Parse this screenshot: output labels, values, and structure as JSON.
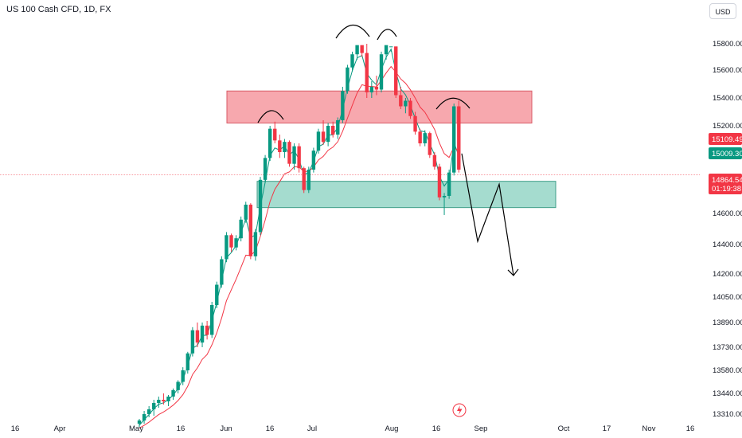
{
  "header": {
    "title": "US 100 Cash CFD, 1D, FX",
    "currency": "USD"
  },
  "colors": {
    "up": "#089981",
    "down": "#f23645",
    "ema_fast": "#089981",
    "ema_slow": "#f23645",
    "resistance_zone": "#f7a8ae",
    "support_zone": "#a5dccf"
  },
  "icons": {
    "bottom": "lightning-icon"
  },
  "chart_data": {
    "type": "candlestick",
    "y_ticks": [
      15800,
      15600,
      15400,
      15200,
      14600,
      14400,
      14200,
      14050,
      13890,
      13730,
      13580,
      13440,
      13310
    ],
    "y_tick_labels": [
      "15800.00",
      "15600.00",
      "15400.00",
      "15200.00",
      "14600.00",
      "14400.00",
      "14200.00",
      "14050.00",
      "13890.00",
      "13730.00",
      "13580.00",
      "13440.00",
      "13310.00"
    ],
    "x_tick_labels": [
      "16",
      "Apr",
      "May",
      "16",
      "Jun",
      "16",
      "Jul",
      "Aug",
      "16",
      "Sep",
      "Oct",
      "17",
      "Nov",
      "16"
    ],
    "price_tags": [
      {
        "text": "15109.49",
        "color": "#f23645",
        "value": 15109.49
      },
      {
        "text": "15009.30",
        "color": "#089981",
        "value": 15009.3
      },
      {
        "text": "14864.54",
        "text2": "01:19:38",
        "color": "#f23645",
        "value": 14864.54
      }
    ],
    "current_price": 14864.54,
    "zones": [
      {
        "name": "resistance",
        "top": 15450,
        "bottom": 15220
      },
      {
        "name": "support",
        "top": 14820,
        "bottom": 14640
      }
    ],
    "candles": [
      [
        13250,
        13280,
        13230,
        13270
      ],
      [
        13270,
        13330,
        13250,
        13310
      ],
      [
        13310,
        13360,
        13290,
        13340
      ],
      [
        13340,
        13400,
        13300,
        13380
      ],
      [
        13380,
        13420,
        13350,
        13400
      ],
      [
        13400,
        13440,
        13370,
        13390
      ],
      [
        13390,
        13430,
        13360,
        13420
      ],
      [
        13420,
        13470,
        13400,
        13460
      ],
      [
        13460,
        13520,
        13440,
        13510
      ],
      [
        13510,
        13600,
        13490,
        13580
      ],
      [
        13580,
        13700,
        13560,
        13690
      ],
      [
        13690,
        13860,
        13670,
        13840
      ],
      [
        13840,
        13890,
        13730,
        13760
      ],
      [
        13760,
        13890,
        13730,
        13870
      ],
      [
        13870,
        13900,
        13780,
        13810
      ],
      [
        13810,
        14020,
        13790,
        14000
      ],
      [
        14000,
        14150,
        13980,
        14130
      ],
      [
        14130,
        14320,
        14110,
        14300
      ],
      [
        14300,
        14480,
        14280,
        14460
      ],
      [
        14460,
        14470,
        14350,
        14380
      ],
      [
        14380,
        14460,
        14360,
        14440
      ],
      [
        14440,
        14580,
        14420,
        14560
      ],
      [
        14560,
        14680,
        14540,
        14660
      ],
      [
        14660,
        14670,
        14300,
        14320
      ],
      [
        14320,
        14500,
        14290,
        14480
      ],
      [
        14480,
        14850,
        14460,
        14830
      ],
      [
        14830,
        15000,
        14810,
        14980
      ],
      [
        14980,
        15200,
        14960,
        15180
      ],
      [
        15180,
        15230,
        15080,
        15100
      ],
      [
        15100,
        15140,
        14980,
        15020
      ],
      [
        15020,
        15110,
        14980,
        15090
      ],
      [
        15090,
        15100,
        14920,
        14940
      ],
      [
        14940,
        15080,
        14900,
        15060
      ],
      [
        15060,
        15080,
        14880,
        14910
      ],
      [
        14910,
        14920,
        14740,
        14760
      ],
      [
        14760,
        14920,
        14740,
        14900
      ],
      [
        14900,
        15050,
        14880,
        15030
      ],
      [
        15030,
        15180,
        15010,
        15160
      ],
      [
        15160,
        15240,
        15070,
        15090
      ],
      [
        15090,
        15220,
        15060,
        15200
      ],
      [
        15200,
        15230,
        15120,
        15140
      ],
      [
        15140,
        15260,
        15110,
        15240
      ],
      [
        15240,
        15480,
        15220,
        15450
      ],
      [
        15450,
        15640,
        15430,
        15620
      ],
      [
        15620,
        15740,
        15590,
        15720
      ],
      [
        15720,
        15820,
        15680,
        15790
      ],
      [
        15790,
        15860,
        15700,
        15730
      ],
      [
        15730,
        15800,
        15400,
        15440
      ],
      [
        15440,
        15520,
        15400,
        15480
      ],
      [
        15480,
        15560,
        15420,
        15460
      ],
      [
        15460,
        15740,
        15440,
        15720
      ],
      [
        15720,
        15820,
        15680,
        15790
      ],
      [
        15790,
        15860,
        15760,
        15820
      ],
      [
        15820,
        15840,
        15400,
        15420
      ],
      [
        15420,
        15480,
        15320,
        15340
      ],
      [
        15340,
        15400,
        15290,
        15380
      ],
      [
        15380,
        15400,
        15250,
        15270
      ],
      [
        15270,
        15300,
        15140,
        15160
      ],
      [
        15160,
        15180,
        15060,
        15080
      ],
      [
        15080,
        15170,
        15060,
        15150
      ],
      [
        15150,
        15160,
        14980,
        15000
      ],
      [
        15000,
        15020,
        14900,
        14920
      ],
      [
        14920,
        14940,
        14690,
        14710
      ],
      [
        14710,
        14740,
        14590,
        14720
      ],
      [
        14720,
        14900,
        14700,
        14880
      ],
      [
        14880,
        15360,
        14860,
        15340
      ],
      [
        15340,
        15380,
        14880,
        14900
      ]
    ],
    "projection": [
      [
        15010,
        null
      ],
      [
        14420,
        null
      ],
      [
        14800,
        null
      ],
      [
        14190,
        null
      ]
    ]
  }
}
